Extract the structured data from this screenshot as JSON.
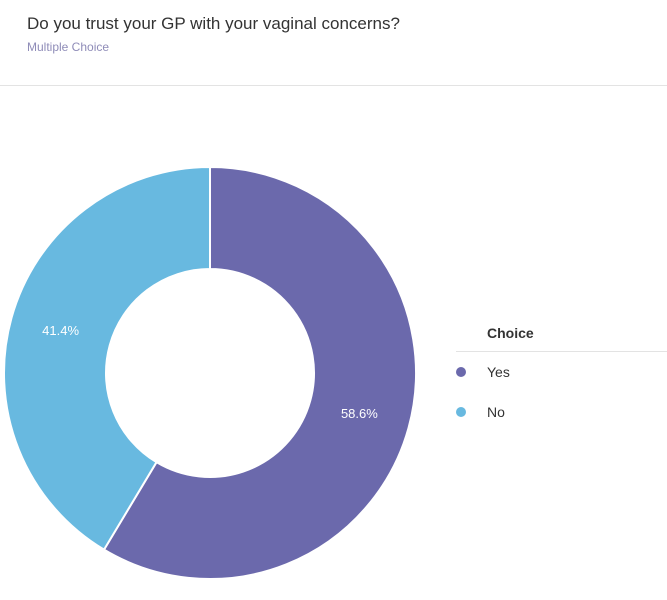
{
  "header": {
    "title": "Do you trust your GP with your vaginal concerns?",
    "subtitle": "Multiple Choice"
  },
  "legend": {
    "title": "Choice",
    "items": [
      {
        "label": "Yes",
        "color": "#6b69ac"
      },
      {
        "label": "No",
        "color": "#68b9e0"
      }
    ]
  },
  "chart_data": {
    "type": "pie",
    "donut": true,
    "categories": [
      "Yes",
      "No"
    ],
    "values": [
      58.6,
      41.4
    ],
    "labels": [
      "58.6%",
      "41.4%"
    ],
    "colors": [
      "#6b69ac",
      "#68b9e0"
    ],
    "legend_title": "Choice",
    "legend_position": "right"
  }
}
